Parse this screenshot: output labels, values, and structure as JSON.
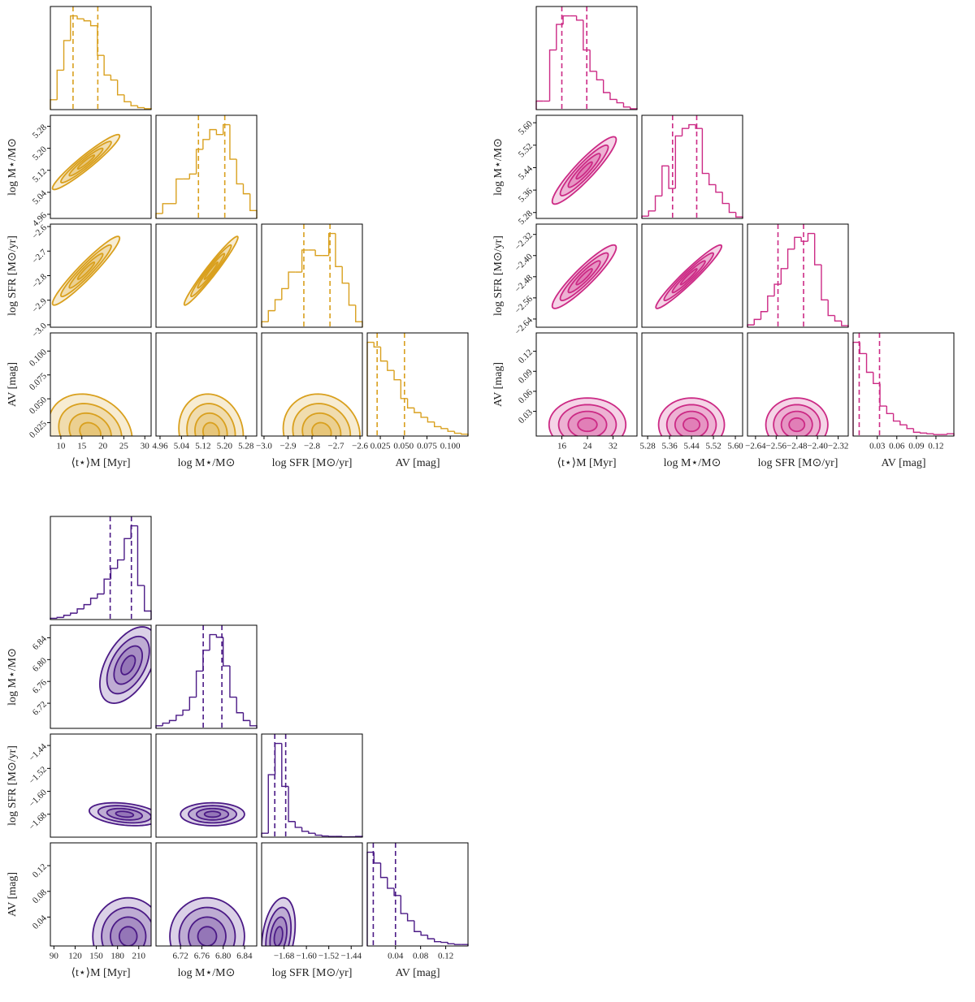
{
  "chart_data": [
    {
      "type": "corner",
      "color": "#d9a01e",
      "sigma_levels": [
        0.5,
        1,
        1.5,
        2
      ],
      "labels": [
        "⟨t⋆⟩M [Myr]",
        "log M⋆/M⊙",
        "log SFR [M⊙/yr]",
        "AV [mag]"
      ],
      "vars": [
        {
          "lim": [
            7.5,
            31.5
          ],
          "ticks": [
            10,
            15,
            20,
            25,
            30
          ]
        },
        {
          "lim": [
            4.945,
            5.32
          ],
          "ticks": [
            4.96,
            5.04,
            5.12,
            {
              "value": 5.2,
              "label": "5.20"
            },
            5.28
          ]
        },
        {
          "lim": [
            -3.01,
            -2.59
          ],
          "ticks": [
            {
              "value": -3.0,
              "label": "−3.0"
            },
            {
              "value": -2.9,
              "label": "−2.9"
            },
            {
              "value": -2.8,
              "label": "−2.8"
            },
            {
              "value": -2.7,
              "label": "−2.7"
            },
            {
              "value": -2.6,
              "label": "−2.6"
            }
          ]
        },
        {
          "lim": [
            0.011,
            0.119
          ],
          "ticks": [
            0.025,
            {
              "value": 0.05,
              "label": "0.050"
            },
            0.075,
            {
              "value": 0.1,
              "label": "0.100"
            }
          ]
        }
      ],
      "histograms": [
        {
          "bins": [
            7.5,
            9.1,
            10.7,
            12.3,
            13.9,
            15.5,
            17.1,
            18.7,
            20.3,
            21.9,
            23.5,
            25.1,
            26.7,
            28.3,
            29.9,
            31.5
          ],
          "counts": [
            10,
            40,
            70,
            95,
            92,
            90,
            85,
            55,
            35,
            30,
            15,
            8,
            4,
            2,
            1
          ],
          "quantiles": [
            12.9,
            18.8
          ]
        },
        {
          "bins": [
            4.945,
            4.97,
            4.995,
            5.02,
            5.045,
            5.07,
            5.095,
            5.12,
            5.145,
            5.17,
            5.195,
            5.22,
            5.245,
            5.27,
            5.295,
            5.32
          ],
          "counts": [
            5,
            15,
            15,
            40,
            40,
            45,
            70,
            80,
            90,
            85,
            95,
            60,
            35,
            25,
            8
          ],
          "quantiles": [
            5.103,
            5.201
          ]
        },
        {
          "bins": [
            -3.01,
            -2.982,
            -2.954,
            -2.926,
            -2.898,
            -2.87,
            -2.842,
            -2.814,
            -2.786,
            -2.758,
            -2.73,
            -2.702,
            -2.674,
            -2.646,
            -2.618,
            -2.59
          ],
          "counts": [
            5,
            15,
            25,
            35,
            50,
            50,
            70,
            70,
            65,
            65,
            85,
            55,
            40,
            20,
            5
          ],
          "quantiles": [
            -2.834,
            -2.725
          ]
        },
        {
          "bins": [
            0.011,
            0.0182,
            0.0254,
            0.0326,
            0.0398,
            0.047,
            0.0542,
            0.0614,
            0.0686,
            0.0758,
            0.083,
            0.0902,
            0.0974,
            0.1046,
            0.1118,
            0.119
          ],
          "counts": [
            100,
            95,
            80,
            70,
            60,
            40,
            30,
            25,
            20,
            15,
            10,
            8,
            5,
            3,
            2
          ],
          "quantiles": [
            0.0216,
            0.0509
          ]
        }
      ],
      "contours": [
        {
          "center": [
            16,
            5.15
          ],
          "sigma": [
            4,
            0.05
          ],
          "corr": 0.95
        },
        {
          "center": [
            16,
            -2.78
          ],
          "sigma": [
            4,
            0.07
          ],
          "corr": 0.95
        },
        {
          "center": [
            5.15,
            -2.78
          ],
          "sigma": [
            0.05,
            0.07
          ],
          "corr": 0.97
        },
        {
          "center": [
            17,
            0.015
          ],
          "sigma": [
            5,
            0.02
          ],
          "corr": -0.2
        },
        {
          "center": [
            5.15,
            0.015
          ],
          "sigma": [
            0.06,
            0.02
          ],
          "corr": -0.1
        },
        {
          "center": [
            -2.76,
            0.015
          ],
          "sigma": [
            0.08,
            0.02
          ],
          "corr": -0.1
        }
      ]
    },
    {
      "type": "corner",
      "color": "#cc2a85",
      "sigma_levels": [
        0.5,
        1,
        1.5,
        2
      ],
      "labels": [
        "⟨t⋆⟩M [Myr]",
        "log M⋆/M⊙",
        "log SFR [M⊙/yr]",
        "AV [mag]"
      ],
      "vars": [
        {
          "lim": [
            8,
            39.5
          ],
          "ticks": [
            16,
            24,
            32
          ]
        },
        {
          "lim": [
            5.259,
            5.6265
          ],
          "ticks": [
            5.28,
            5.36,
            5.44,
            5.52,
            {
              "value": 5.6,
              "label": "5.60"
            }
          ]
        },
        {
          "lim": [
            -2.671,
            -2.281
          ],
          "ticks": [
            {
              "value": -2.64,
              "label": "−2.64"
            },
            {
              "value": -2.56,
              "label": "−2.56"
            },
            {
              "value": -2.48,
              "label": "−2.48"
            },
            {
              "value": -2.4,
              "label": "−2.40"
            },
            {
              "value": -2.32,
              "label": "−2.32"
            }
          ]
        },
        {
          "lim": [
            -0.007,
            0.1475
          ],
          "ticks": [
            0.03,
            0.06,
            0.09,
            0.12
          ]
        }
      ],
      "histograms": [
        {
          "bins": [
            8,
            10.1,
            12.2,
            14.3,
            16.4,
            18.5,
            20.6,
            22.7,
            24.8,
            26.9,
            29,
            31.1,
            33.2,
            35.3,
            37.4,
            39.5
          ],
          "counts": [
            10,
            10,
            70,
            100,
            110,
            110,
            105,
            70,
            45,
            35,
            20,
            12,
            8,
            3,
            1
          ],
          "quantiles": [
            16,
            23.8
          ]
        },
        {
          "bins": [
            5.259,
            5.2835,
            5.308,
            5.3325,
            5.357,
            5.3815,
            5.406,
            5.4305,
            5.455,
            5.4795,
            5.504,
            5.5285,
            5.553,
            5.5775,
            5.602,
            5.6265
          ],
          "counts": [
            3,
            10,
            30,
            70,
            40,
            110,
            120,
            125,
            120,
            60,
            45,
            35,
            20,
            8,
            2
          ],
          "quantiles": [
            5.371,
            5.459
          ]
        },
        {
          "bins": [
            -2.671,
            -2.645,
            -2.619,
            -2.593,
            -2.567,
            -2.541,
            -2.515,
            -2.489,
            -2.463,
            -2.437,
            -2.411,
            -2.385,
            -2.359,
            -2.333,
            -2.307,
            -2.281
          ],
          "counts": [
            3,
            10,
            20,
            40,
            55,
            75,
            100,
            115,
            110,
            120,
            80,
            35,
            15,
            8,
            2
          ],
          "quantiles": [
            -2.553,
            -2.454
          ]
        },
        {
          "bins": [
            -0.007,
            0.0033,
            0.0136,
            0.0239,
            0.0342,
            0.0445,
            0.0548,
            0.0651,
            0.0754,
            0.0857,
            0.096,
            0.1063,
            0.1166,
            0.1269,
            0.1372,
            0.1475
          ],
          "counts": [
            125,
            110,
            85,
            70,
            40,
            30,
            20,
            15,
            10,
            5,
            4,
            3,
            2,
            2,
            3
          ],
          "quantiles": [
            0.0023,
            0.0335
          ]
        }
      ],
      "contours": [
        {
          "center": [
            23,
            5.43
          ],
          "sigma": [
            5,
            0.06
          ],
          "corr": 0.92
        },
        {
          "center": [
            23,
            -2.48
          ],
          "sigma": [
            5,
            0.06
          ],
          "corr": 0.92
        },
        {
          "center": [
            5.43,
            -2.48
          ],
          "sigma": [
            0.06,
            0.06
          ],
          "corr": 0.96
        },
        {
          "center": [
            24,
            0.01
          ],
          "sigma": [
            6,
            0.02
          ],
          "corr": 0
        },
        {
          "center": [
            5.44,
            0.01
          ],
          "sigma": [
            0.06,
            0.02
          ],
          "corr": 0
        },
        {
          "center": [
            -2.48,
            0.01
          ],
          "sigma": [
            0.06,
            0.02
          ],
          "corr": 0
        }
      ]
    },
    {
      "type": "corner",
      "color": "#4b1a86",
      "sigma_levels": [
        0.5,
        1,
        1.5,
        2
      ],
      "labels": [
        "⟨t⋆⟩M [Myr]",
        "log M⋆/M⊙",
        "log SFR [M⊙/yr]",
        "AV [mag]"
      ],
      "vars": [
        {
          "lim": [
            85,
            227.5
          ],
          "ticks": [
            90,
            120,
            150,
            180,
            210
          ]
        },
        {
          "lim": [
            6.674,
            6.863
          ],
          "ticks": [
            6.72,
            6.76,
            {
              "value": 6.8,
              "label": "6.80"
            },
            6.84
          ]
        },
        {
          "lim": [
            -1.76,
            -1.4
          ],
          "ticks": [
            {
              "value": -1.68,
              "label": "−1.68"
            },
            {
              "value": -1.6,
              "label": "−1.60"
            },
            {
              "value": -1.52,
              "label": "−1.52"
            },
            {
              "value": -1.44,
              "label": "−1.44"
            }
          ]
        },
        {
          "lim": [
            -0.005,
            0.1555
          ],
          "ticks": [
            0.04,
            0.08,
            0.12
          ]
        }
      ],
      "histograms": [
        {
          "bins": [
            85,
            94.5,
            104,
            113.5,
            123,
            132.5,
            142,
            151.5,
            161,
            170.5,
            180,
            189.5,
            199,
            208.5,
            218,
            227.5
          ],
          "counts": [
            3,
            5,
            10,
            15,
            25,
            35,
            50,
            60,
            95,
            120,
            140,
            190,
            220,
            80,
            20
          ],
          "quantiles": [
            169.6,
            199.6
          ]
        },
        {
          "bins": [
            6.674,
            6.6866,
            6.6992,
            6.7118,
            6.7244,
            6.737,
            6.7496,
            6.7622,
            6.7748,
            6.7874,
            6.8,
            6.8126,
            6.8252,
            6.8378,
            6.8504,
            6.863
          ],
          "counts": [
            5,
            10,
            15,
            25,
            35,
            60,
            110,
            150,
            180,
            175,
            120,
            60,
            30,
            15,
            5
          ],
          "quantiles": [
            6.7626,
            6.7976
          ]
        },
        {
          "bins": [
            -1.76,
            -1.736,
            -1.712,
            -1.688,
            -1.664,
            -1.64,
            -1.616,
            -1.592,
            -1.568,
            -1.544,
            -1.52,
            -1.496,
            -1.472,
            -1.448,
            -1.424,
            -1.4
          ],
          "counts": [
            10,
            160,
            240,
            130,
            40,
            25,
            15,
            10,
            5,
            3,
            2,
            2,
            1,
            1,
            2
          ],
          "quantiles": [
            -1.713,
            -1.674
          ]
        },
        {
          "bins": [
            -0.005,
            0.0057,
            0.0164,
            0.0271,
            0.0378,
            0.0485,
            0.0592,
            0.0699,
            0.0806,
            0.0913,
            0.102,
            0.1127,
            0.1234,
            0.1341,
            0.1448,
            0.1555
          ],
          "counts": [
            130,
            115,
            95,
            80,
            70,
            45,
            35,
            20,
            15,
            10,
            6,
            5,
            3,
            2,
            2
          ],
          "quantiles": [
            0.0046,
            0.04
          ]
        }
      ],
      "contours": [
        {
          "center": [
            195,
            6.79
          ],
          "sigma": [
            20,
            0.035
          ],
          "corr": 0.5
        },
        {
          "center": [
            190,
            -1.68
          ],
          "sigma": [
            25,
            0.02
          ],
          "corr": -0.3
        },
        {
          "center": [
            6.78,
            -1.68
          ],
          "sigma": [
            0.03,
            0.02
          ],
          "corr": 0
        },
        {
          "center": [
            195,
            0.01
          ],
          "sigma": [
            25,
            0.03
          ],
          "corr": 0
        },
        {
          "center": [
            6.77,
            0.01
          ],
          "sigma": [
            0.035,
            0.03
          ],
          "corr": 0
        },
        {
          "center": [
            -1.7,
            0.01
          ],
          "sigma": [
            0.03,
            0.03
          ],
          "corr": 0.3
        }
      ]
    }
  ]
}
